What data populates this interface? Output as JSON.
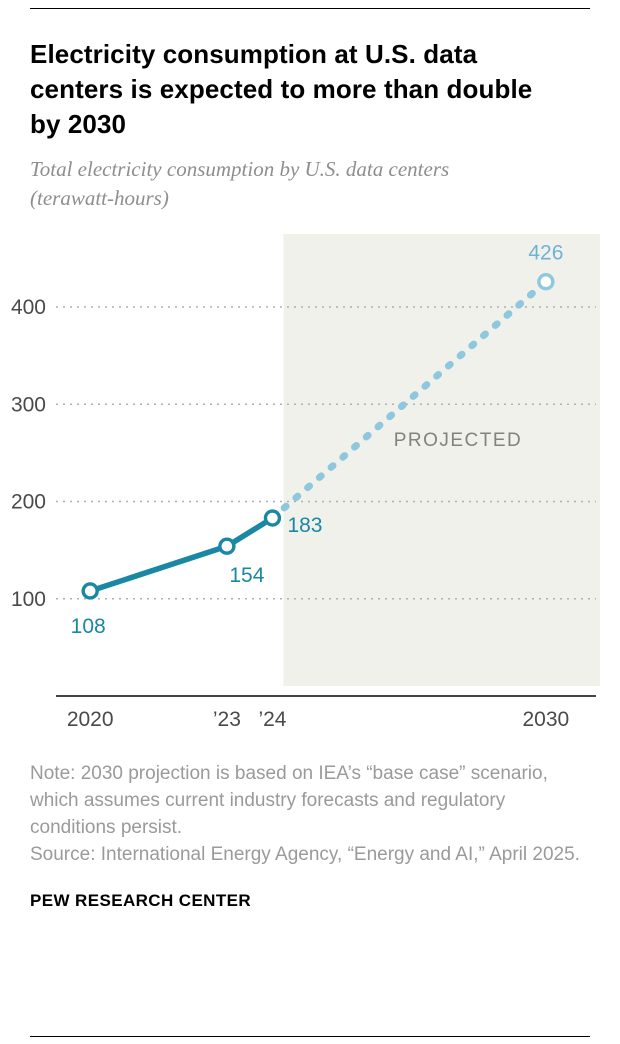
{
  "header": {
    "title": "Electricity consumption at U.S. data centers is expected to more than double by 2030",
    "subtitle": "Total electricity consumption by U.S. data centers (terawatt-hours)"
  },
  "chart_data": {
    "type": "line",
    "title": "Electricity consumption at U.S. data centers is expected to more than double by 2030",
    "ylabel": "terawatt-hours",
    "xlabel": "",
    "x": [
      2020,
      2023,
      2024,
      2030
    ],
    "x_tick_labels": [
      "2020",
      "’23",
      "’24",
      "2030"
    ],
    "values": [
      108,
      154,
      183,
      426
    ],
    "point_labels": [
      "108",
      "154",
      "183",
      "426"
    ],
    "solid_segment_end_index": 2,
    "projected": {
      "label": "PROJECTED",
      "from_x": 2024
    },
    "y_ticks": [
      100,
      200,
      300,
      400
    ],
    "ylim": [
      0,
      450
    ],
    "xlim": [
      2019.25,
      2031.1
    ],
    "grid": "dotted-horizontal",
    "legend_position": "none",
    "colors": {
      "solid": "#1a87a4",
      "dashed": "#8ec7de",
      "label_solid": "#1a87a4",
      "label_projected": "#6fb3d4",
      "projected_bg": "#f1f1ec",
      "projected_text": "#83837b",
      "axis": "#444444",
      "grid": "#b0b0b0",
      "tick_text": "#4a4a4a"
    }
  },
  "footer": {
    "note": "Note: 2030 projection is based on IEA’s “base case” scenario, which assumes current industry forecasts and regulatory conditions persist.",
    "source": "Source: International Energy Agency, “Energy and AI,” April 2025.",
    "brand": "PEW RESEARCH CENTER"
  }
}
